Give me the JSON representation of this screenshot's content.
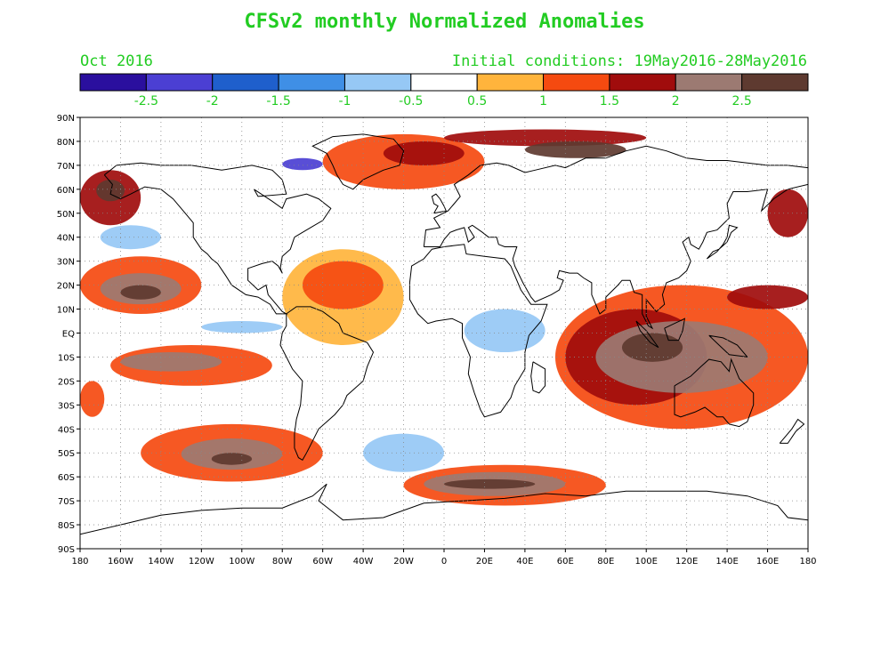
{
  "header": {
    "title": "CFSv2 monthly Normalized Anomalies",
    "valid_month": "Oct 2016",
    "initial_conditions": "Initial conditions: 19May2016-28May2016",
    "text_color": "#22cc22"
  },
  "colorbar": {
    "colors": [
      "#2a0f9e",
      "#4b3fd3",
      "#1f5fcc",
      "#3f8fe6",
      "#96c8f5",
      "#ffffff",
      "#ffb43c",
      "#f54a10",
      "#a00c0c",
      "#9c7a72",
      "#5e3a30"
    ],
    "tick_labels": [
      "-2.5",
      "-2",
      "-1.5",
      "-1",
      "-0.5",
      "0.5",
      "1",
      "1.5",
      "2",
      "2.5"
    ],
    "label_color": "#22cc22"
  },
  "map": {
    "lat_labels": [
      "90N",
      "80N",
      "70N",
      "60N",
      "50N",
      "40N",
      "30N",
      "20N",
      "10N",
      "EQ",
      "10S",
      "20S",
      "30S",
      "40S",
      "50S",
      "60S",
      "70S",
      "80S",
      "90S"
    ],
    "lon_labels": [
      "180",
      "160W",
      "140W",
      "120W",
      "100W",
      "80W",
      "60W",
      "40W",
      "20W",
      "0",
      "20E",
      "40E",
      "60E",
      "80E",
      "100E",
      "120E",
      "140E",
      "160E",
      "180"
    ],
    "grid": "dotted",
    "anomaly_fields": [
      {
        "lon": [
          -180,
          -120
        ],
        "lat": [
          8,
          32
        ],
        "level": 1
      },
      {
        "lon": [
          -170,
          -130
        ],
        "lat": [
          12,
          25
        ],
        "level": 3
      },
      {
        "lon": [
          -160,
          -140
        ],
        "lat": [
          14,
          20
        ],
        "level": 4
      },
      {
        "lon": [
          -180,
          -150
        ],
        "lat": [
          45,
          68
        ],
        "level": 2
      },
      {
        "lon": [
          -172,
          -158
        ],
        "lat": [
          55,
          64
        ],
        "level": 4
      },
      {
        "lon": [
          -165,
          -85
        ],
        "lat": [
          -22,
          -5
        ],
        "level": 1
      },
      {
        "lon": [
          -160,
          -110
        ],
        "lat": [
          -16,
          -8
        ],
        "level": 3
      },
      {
        "lon": [
          -150,
          -60
        ],
        "lat": [
          -62,
          -38
        ],
        "level": 1
      },
      {
        "lon": [
          -130,
          -80
        ],
        "lat": [
          -57,
          -44
        ],
        "level": 3
      },
      {
        "lon": [
          -115,
          -95
        ],
        "lat": [
          -55,
          -50
        ],
        "level": 4
      },
      {
        "lon": [
          -180,
          -168
        ],
        "lat": [
          -35,
          -20
        ],
        "level": 1
      },
      {
        "lon": [
          -80,
          -20
        ],
        "lat": [
          -5,
          35
        ],
        "level": 0
      },
      {
        "lon": [
          -70,
          -30
        ],
        "lat": [
          10,
          30
        ],
        "level": 1
      },
      {
        "lon": [
          -60,
          20
        ],
        "lat": [
          60,
          83
        ],
        "level": 1
      },
      {
        "lon": [
          -30,
          10
        ],
        "lat": [
          70,
          80
        ],
        "level": 2
      },
      {
        "lon": [
          0,
          100
        ],
        "lat": [
          78,
          85
        ],
        "level": 2
      },
      {
        "lon": [
          40,
          90
        ],
        "lat": [
          73,
          80
        ],
        "level": 4
      },
      {
        "lon": [
          55,
          180
        ],
        "lat": [
          -40,
          20
        ],
        "level": 1
      },
      {
        "lon": [
          60,
          130
        ],
        "lat": [
          -30,
          10
        ],
        "level": 2
      },
      {
        "lon": [
          75,
          160
        ],
        "lat": [
          -25,
          5
        ],
        "level": 3
      },
      {
        "lon": [
          88,
          118
        ],
        "lat": [
          -12,
          0
        ],
        "level": 4
      },
      {
        "lon": [
          140,
          180
        ],
        "lat": [
          10,
          20
        ],
        "level": 2
      },
      {
        "lon": [
          160,
          180
        ],
        "lat": [
          40,
          60
        ],
        "level": 2
      },
      {
        "lon": [
          -20,
          80
        ],
        "lat": [
          -72,
          -55
        ],
        "level": 1
      },
      {
        "lon": [
          -10,
          60
        ],
        "lat": [
          -68,
          -58
        ],
        "level": 3
      },
      {
        "lon": [
          0,
          45
        ],
        "lat": [
          -65,
          -61
        ],
        "level": 4
      },
      {
        "lon": [
          10,
          50
        ],
        "lat": [
          -8,
          10
        ],
        "level": -1
      },
      {
        "lon": [
          -120,
          -80
        ],
        "lat": [
          0,
          5
        ],
        "level": -1
      },
      {
        "lon": [
          -40,
          0
        ],
        "lat": [
          -58,
          -42
        ],
        "level": -1
      },
      {
        "lon": [
          -170,
          -140
        ],
        "lat": [
          35,
          45
        ],
        "level": -1
      },
      {
        "lon": [
          -80,
          -60
        ],
        "lat": [
          68,
          73
        ],
        "level": -3
      }
    ]
  }
}
